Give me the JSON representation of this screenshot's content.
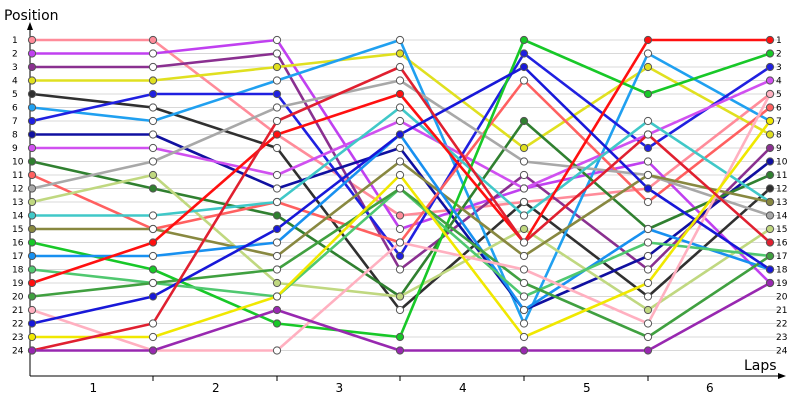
{
  "chart_data": {
    "type": "line",
    "ylabel": "Position",
    "xlabel": "Laps",
    "x_categories": [
      "1",
      "2",
      "3",
      "4",
      "5",
      "6"
    ],
    "x_points": [
      0,
      1,
      2,
      3,
      4,
      5,
      6
    ],
    "ylim": [
      1,
      24
    ],
    "y_inverted": true,
    "y_ticks": [
      "1",
      "2",
      "3",
      "4",
      "5",
      "6",
      "7",
      "8",
      "9",
      "10",
      "11",
      "12",
      "13",
      "14",
      "15",
      "16",
      "17",
      "18",
      "19",
      "20",
      "21",
      "22",
      "23",
      "24"
    ],
    "grid": "horizontal",
    "series": [
      {
        "color": "#ff8c9a",
        "values": [
          1,
          1,
          8,
          14,
          13,
          12,
          5
        ]
      },
      {
        "color": "#c040f0",
        "values": [
          2,
          2,
          1,
          15,
          12,
          10,
          19
        ]
      },
      {
        "color": "#8a3090",
        "values": [
          3,
          3,
          2,
          18,
          11,
          18,
          9
        ]
      },
      {
        "color": "#e0e020",
        "values": [
          4,
          4,
          3,
          2,
          9,
          3,
          8
        ]
      },
      {
        "color": "#303030",
        "values": [
          5,
          6,
          9,
          21,
          13,
          20,
          12
        ]
      },
      {
        "color": "#20a0f0",
        "values": [
          6,
          7,
          4,
          1,
          22,
          2,
          7
        ]
      },
      {
        "color": "#2020e0",
        "values": [
          7,
          5,
          5,
          17,
          2,
          9,
          3
        ]
      },
      {
        "color": "#1010a0",
        "values": [
          8,
          8,
          12,
          9,
          21,
          17,
          10
        ]
      },
      {
        "color": "#d050f0",
        "values": [
          9,
          9,
          11,
          7,
          12,
          8,
          4
        ]
      },
      {
        "color": "#308030",
        "values": [
          10,
          12,
          14,
          20,
          7,
          15,
          11
        ]
      },
      {
        "color": "#ff6060",
        "values": [
          11,
          15,
          13,
          16,
          4,
          13,
          6
        ]
      },
      {
        "color": "#a8a8a8",
        "values": [
          12,
          10,
          6,
          4,
          10,
          11,
          14
        ]
      },
      {
        "color": "#c0d880",
        "values": [
          13,
          11,
          19,
          20,
          15,
          21,
          15
        ]
      },
      {
        "color": "#40c8c8",
        "values": [
          14,
          14,
          13,
          6,
          14,
          7,
          13
        ]
      },
      {
        "color": "#888840",
        "values": [
          15,
          15,
          17,
          10,
          17,
          11,
          13
        ]
      },
      {
        "color": "#18c828",
        "values": [
          16,
          18,
          22,
          23,
          1,
          5,
          2
        ]
      },
      {
        "color": "#1890f0",
        "values": [
          17,
          17,
          16,
          8,
          21,
          15,
          18
        ]
      },
      {
        "color": "#50c870",
        "values": [
          18,
          19,
          20,
          12,
          20,
          16,
          17
        ]
      },
      {
        "color": "#ff1010",
        "values": [
          19,
          16,
          8,
          5,
          16,
          1,
          1
        ]
      },
      {
        "color": "#40a040",
        "values": [
          20,
          19,
          18,
          12,
          19,
          23,
          17
        ]
      },
      {
        "color": "#ffb0c0",
        "values": [
          21,
          24,
          24,
          16,
          18,
          22,
          5
        ]
      },
      {
        "color": "#1818d8",
        "values": [
          22,
          20,
          15,
          8,
          3,
          12,
          18
        ]
      },
      {
        "color": "#f0e800",
        "values": [
          23,
          23,
          20,
          11,
          23,
          19,
          7
        ]
      },
      {
        "color": "#e02030",
        "values": [
          24,
          22,
          7,
          3,
          16,
          8,
          16
        ]
      },
      {
        "color": "#9828b0",
        "values": [
          24,
          24,
          21,
          24,
          24,
          24,
          19
        ]
      }
    ]
  }
}
